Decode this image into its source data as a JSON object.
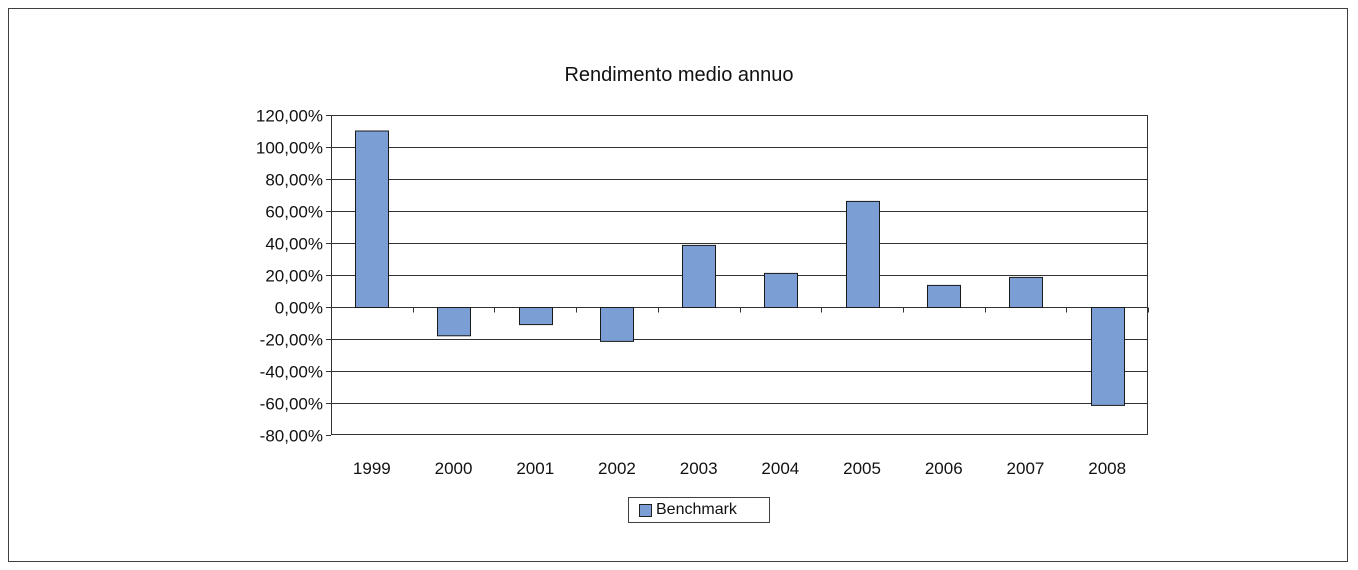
{
  "chart_data": {
    "type": "bar",
    "title": "Rendimento medio annuo",
    "categories": [
      "1999",
      "2000",
      "2001",
      "2002",
      "2003",
      "2004",
      "2005",
      "2006",
      "2007",
      "2008"
    ],
    "series": [
      {
        "name": "Benchmark",
        "values": [
          110.0,
          -18.0,
          -11.0,
          -21.5,
          38.5,
          21.0,
          66.0,
          13.5,
          18.5,
          -61.5
        ]
      }
    ],
    "y_ticks": [
      "120,00%",
      "100,00%",
      "80,00%",
      "60,00%",
      "40,00%",
      "20,00%",
      "0,00%",
      "-20,00%",
      "-40,00%",
      "-60,00%",
      "-80,00%"
    ],
    "ylim": [
      -80,
      120
    ],
    "unit": "%",
    "grid": true,
    "legend_position": "bottom",
    "colors": {
      "bar": "#7b9fd4",
      "bar_stroke": "#1a1a1a",
      "grid": "#333333"
    }
  }
}
